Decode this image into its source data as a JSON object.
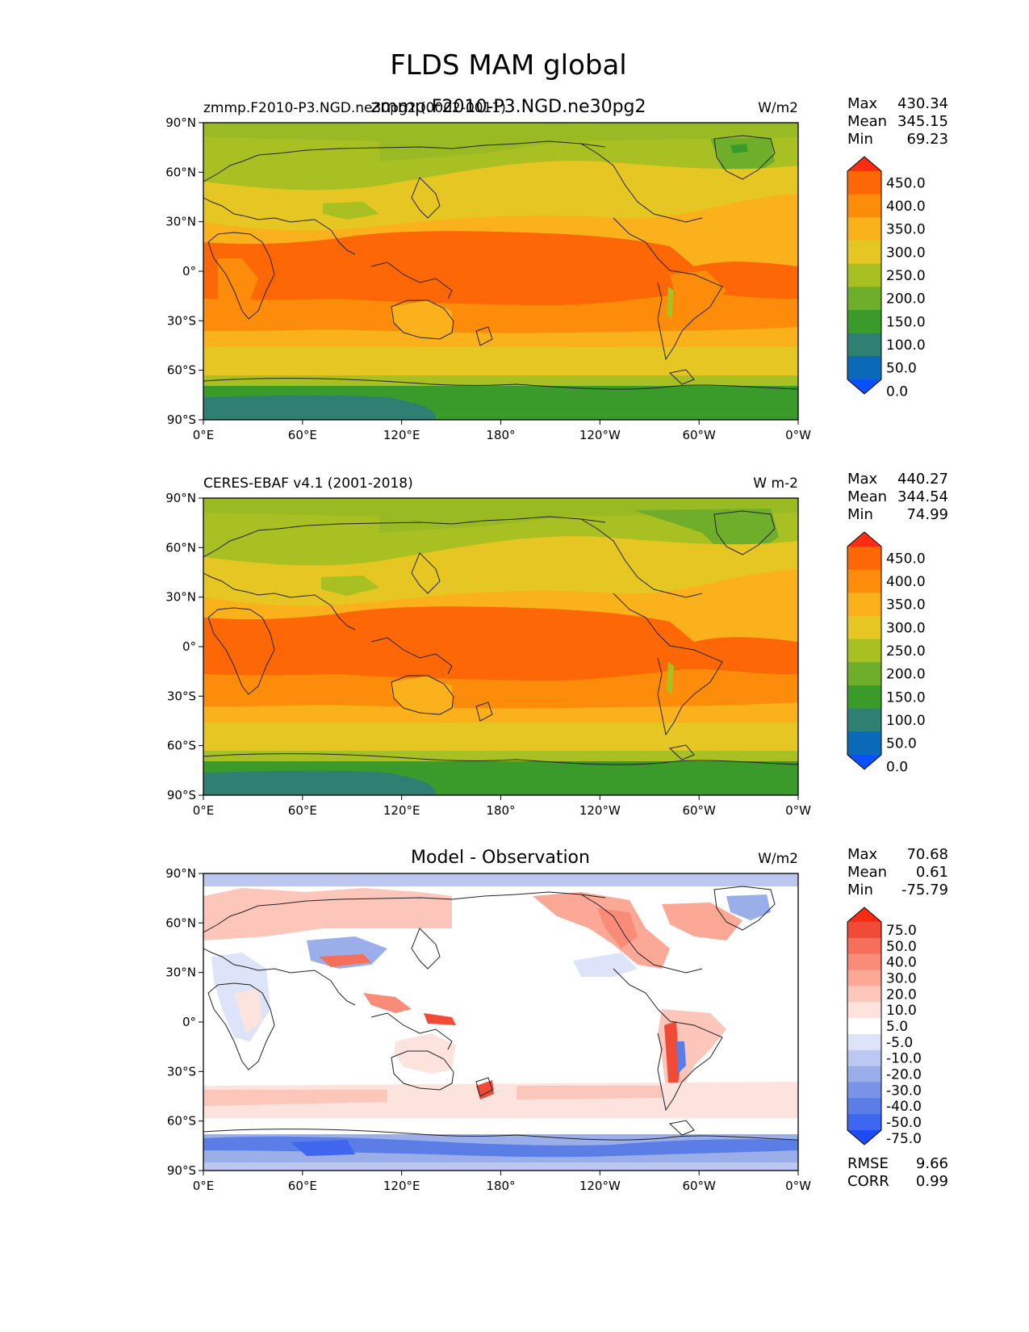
{
  "title": "FLDS MAM global",
  "overlap_title": "zmmp.F2010-P3.NGD.ne30pg2",
  "axes": {
    "lat_ticks": [
      "90°N",
      "60°N",
      "30°N",
      "0°",
      "30°S",
      "60°S",
      "90°S"
    ],
    "lon_ticks": [
      "0°E",
      "60°E",
      "120°E",
      "180°",
      "120°W",
      "60°W",
      "0°W"
    ]
  },
  "panels": [
    {
      "left_title": "zmmp.F2010-P3.NGD.ne30pg2 (0002-0011)",
      "center_title": "",
      "units": "W/m2",
      "stats": {
        "max_label": "Max",
        "max": "430.34",
        "mean_label": "Mean",
        "mean": "345.15",
        "min_label": "Min",
        "min": "69.23"
      },
      "colorbar_labels": [
        "450.0",
        "400.0",
        "350.0",
        "300.0",
        "250.0",
        "200.0",
        "150.0",
        "100.0",
        "50.0",
        "0.0"
      ]
    },
    {
      "left_title": "CERES-EBAF v4.1 (2001-2018)",
      "center_title": "",
      "units": "W m-2",
      "stats": {
        "max_label": "Max",
        "max": "440.27",
        "mean_label": "Mean",
        "mean": "344.54",
        "min_label": "Min",
        "min": "74.99"
      },
      "colorbar_labels": [
        "450.0",
        "400.0",
        "350.0",
        "300.0",
        "250.0",
        "200.0",
        "150.0",
        "100.0",
        "50.0",
        "0.0"
      ]
    },
    {
      "left_title": "",
      "center_title": "Model - Observation",
      "units": "W/m2",
      "stats": {
        "max_label": "Max",
        "max": "70.68",
        "mean_label": "Mean",
        "mean": "0.61",
        "min_label": "Min",
        "min": "-75.79"
      },
      "colorbar_labels": [
        "75.0",
        "50.0",
        "40.0",
        "30.0",
        "20.0",
        "10.0",
        "5.0",
        "-5.0",
        "-10.0",
        "-20.0",
        "-30.0",
        "-40.0",
        "-50.0",
        "-75.0"
      ],
      "rmse_label": "RMSE",
      "rmse": "9.66",
      "corr_label": "CORR",
      "corr": "0.99"
    }
  ],
  "colors": {
    "sequential": [
      "#0a50ff",
      "#0a6ab8",
      "#2f8073",
      "#3a9b2a",
      "#6fae2a",
      "#a9c023",
      "#e6c622",
      "#fbb11b",
      "#fd8c0a",
      "#fd6706",
      "#fd2c12"
    ],
    "diverging": [
      "#1d4cf5",
      "#3f66ee",
      "#5b7de6",
      "#7893e8",
      "#9aaeea",
      "#bcc8f1",
      "#dde3f8",
      "#ffffff",
      "#fde3dd",
      "#fcc6bb",
      "#fba896",
      "#f88c78",
      "#f56f5a",
      "#f04b37",
      "#fb2a12"
    ]
  }
}
